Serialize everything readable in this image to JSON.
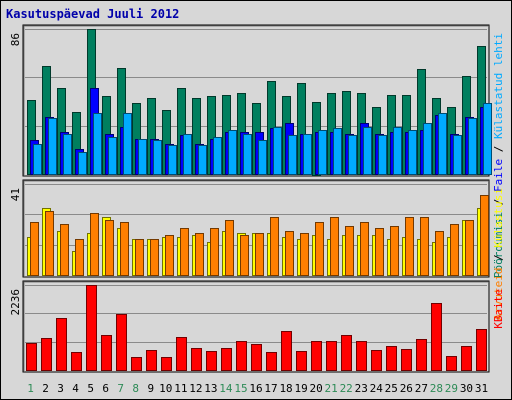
{
  "chart_data": {
    "type": "bar",
    "title": "Kasutuspäevad Juuli 2012",
    "categories": [
      "1",
      "2",
      "3",
      "4",
      "5",
      "6",
      "7",
      "8",
      "9",
      "10",
      "11",
      "12",
      "13",
      "14",
      "15",
      "16",
      "17",
      "18",
      "19",
      "20",
      "21",
      "22",
      "23",
      "24",
      "25",
      "26",
      "27",
      "28",
      "29",
      "30",
      "31"
    ],
    "weekend_days": [
      "1",
      "7",
      "8",
      "14",
      "15",
      "21",
      "22",
      "28",
      "29"
    ],
    "panels": [
      {
        "id": "top",
        "ymax_label": "86",
        "ymax": 86,
        "right_labels": [
          {
            "text": "Pöördumisi",
            "color": "#007f5f"
          },
          {
            "text": " / ",
            "color": "#000000"
          },
          {
            "text": "Faile",
            "color": "#0000ff"
          },
          {
            "text": " / ",
            "color": "#000000"
          },
          {
            "text": "Külastatud lehti",
            "color": "#00aaff"
          }
        ],
        "series": [
          {
            "name": "Pöördumisi",
            "color": "#007f5f",
            "values": [
              44,
              64,
              51,
              37,
              86,
              46,
              63,
              42,
              45,
              38,
              51,
              45,
              46,
              47,
              48,
              42,
              55,
              46,
              54,
              43,
              48,
              49,
              48,
              40,
              47,
              47,
              62,
              45,
              40,
              58,
              76
            ]
          },
          {
            "name": "Faile",
            "color": "#0000ff",
            "values": [
              20,
              34,
              25,
              15,
              51,
              24,
              28,
              21,
              21,
              18,
              23,
              18,
              21,
              25,
              25,
              25,
              27,
              30,
              24,
              25,
              25,
              24,
              30,
              24,
              25,
              25,
              26,
              35,
              24,
              34,
              40
            ]
          },
          {
            "name": "Külastatud lehti",
            "color": "#00aaff",
            "values": [
              18,
              33,
              24,
              13,
              36,
              22,
              36,
              21,
              20,
              17,
              24,
              17,
              22,
              26,
              24,
              20,
              28,
              23,
              24,
              26,
              27,
              23,
              28,
              23,
              28,
              26,
              30,
              36,
              23,
              33,
              42
            ]
          }
        ]
      },
      {
        "id": "middle",
        "ymax_label": "41",
        "ymax": 41,
        "right_labels": [
          {
            "text": "Arvuteid",
            "color": "#ff7f00"
          },
          {
            "text": " / ",
            "color": "#000000"
          },
          {
            "text": "Külastusi",
            "color": "#ffff00"
          }
        ],
        "series": [
          {
            "name": "Külastusi",
            "color": "#ffff00",
            "values": [
              17,
              30,
              20,
              11,
              19,
              26,
              21,
              16,
              16,
              17,
              17,
              18,
              15,
              20,
              19,
              19,
              19,
              17,
              16,
              18,
              16,
              18,
              18,
              18,
              16,
              17,
              16,
              15,
              17,
              25,
              30
            ]
          },
          {
            "name": "Arvuteid",
            "color": "#ff7f00",
            "values": [
              24,
              29,
              23,
              16,
              28,
              25,
              24,
              16,
              16,
              18,
              21,
              19,
              21,
              25,
              18,
              19,
              26,
              20,
              19,
              24,
              26,
              22,
              24,
              21,
              22,
              26,
              26,
              20,
              23,
              25,
              36
            ]
          }
        ]
      },
      {
        "id": "bottom",
        "ymax_label": "2236",
        "ymax": 2236,
        "right_labels": [
          {
            "text": "KBaite",
            "color": "#ff0000"
          }
        ],
        "series": [
          {
            "name": "KBaite",
            "color": "#ff0000",
            "values": [
              720,
              840,
              1380,
              480,
              2236,
              910,
              1480,
              330,
              520,
              350,
              880,
              570,
              500,
              580,
              760,
              680,
              480,
              1020,
              500,
              760,
              760,
              920,
              760,
              530,
              620,
              540,
              810,
              1760,
              380,
              620,
              1090
            ]
          }
        ]
      }
    ]
  }
}
